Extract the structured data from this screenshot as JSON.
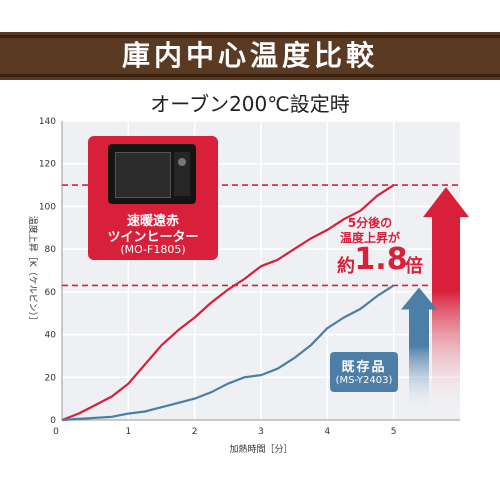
{
  "header": {
    "title": "庫内中心温度比較",
    "subtitle": "オーブン200℃設定時"
  },
  "products": {
    "new": {
      "line1": "速暖遠赤",
      "line2": "ツインヒーター",
      "model": "(MO-F1805)"
    },
    "old": {
      "line1": "既存品",
      "model": "(MS-Y2403)"
    }
  },
  "annotation": {
    "line1": "5分後の",
    "line2": "温度上昇が",
    "prefix": "約",
    "value": "1.8",
    "suffix": "倍"
  },
  "colors": {
    "banner": "#5a3a22",
    "new": "#d8203a",
    "old": "#4c7ea6",
    "grid": "#ffffff",
    "plot_bg": "#eef0f3"
  },
  "chart_data": {
    "type": "line",
    "title": "オーブン200℃設定時",
    "xlabel": "加熱時間［分］",
    "ylabel": "温度上昇［K（ケルビン）］",
    "xlim": [
      0,
      6
    ],
    "ylim": [
      0,
      140
    ],
    "xticks": [
      0,
      1,
      2,
      3,
      4,
      5
    ],
    "yticks": [
      0,
      20,
      40,
      60,
      80,
      100,
      120,
      140
    ],
    "series": [
      {
        "name": "速暖遠赤 ツインヒーター (MO-F1805)",
        "color": "#d8203a",
        "x": [
          0,
          0.25,
          0.5,
          0.75,
          1,
          1.25,
          1.5,
          1.75,
          2,
          2.25,
          2.5,
          2.75,
          3,
          3.25,
          3.5,
          3.75,
          4,
          4.25,
          4.5,
          4.75,
          5
        ],
        "y": [
          0,
          3,
          7,
          11,
          17,
          26,
          35,
          42,
          48,
          55,
          61,
          66,
          72,
          75,
          80,
          85,
          89,
          94,
          98,
          105,
          110
        ]
      },
      {
        "name": "既存品 (MS-Y2403)",
        "color": "#4c7ea6",
        "x": [
          0,
          0.25,
          0.5,
          0.75,
          1,
          1.25,
          1.5,
          1.75,
          2,
          2.25,
          2.5,
          2.75,
          3,
          3.25,
          3.5,
          3.75,
          4,
          4.25,
          4.5,
          4.75,
          5
        ],
        "y": [
          0,
          0.5,
          1,
          1.5,
          3,
          4,
          6,
          8,
          10,
          13,
          17,
          20,
          21,
          24,
          29,
          35,
          43,
          48,
          52,
          58,
          63
        ]
      }
    ],
    "reference_lines": [
      110,
      63
    ],
    "ratio_label": "約1.8倍"
  }
}
